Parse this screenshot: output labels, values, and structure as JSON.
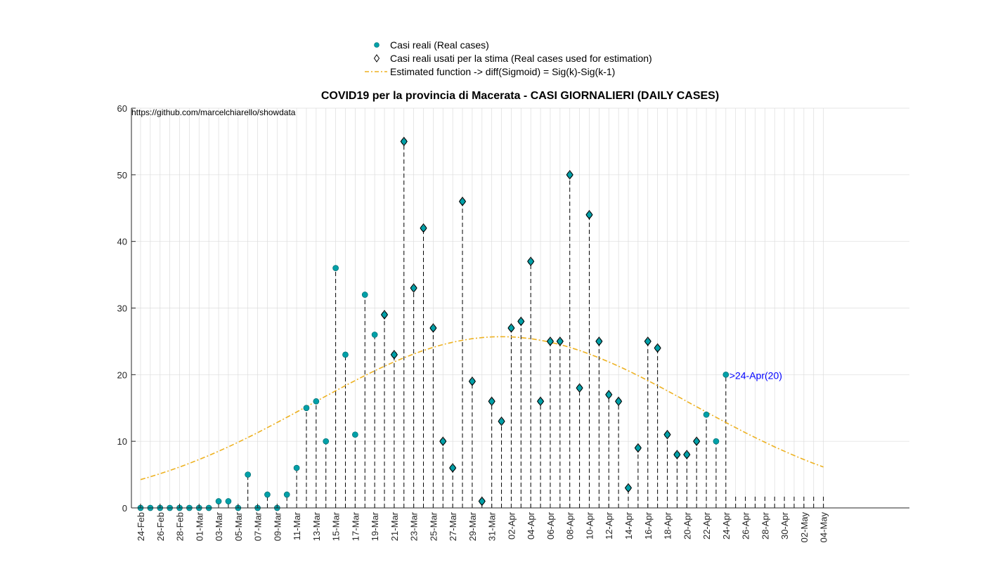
{
  "chart_data": {
    "type": "scatter",
    "title": "COVID19 per la provincia di Macerata - CASI GIORNALIERI (DAILY CASES)",
    "watermark": "https://github.com/marcelchiarello/showdata",
    "xlabel": "",
    "ylabel": "",
    "ylim": [
      0,
      60
    ],
    "yticks": [
      0,
      10,
      20,
      30,
      40,
      50,
      60
    ],
    "grid": true,
    "legend_position": "top-center",
    "x_start": "24-Feb",
    "x_end": "04-May",
    "xtick_labels": [
      "24-Feb",
      "26-Feb",
      "28-Feb",
      "01-Mar",
      "03-Mar",
      "05-Mar",
      "07-Mar",
      "09-Mar",
      "11-Mar",
      "13-Mar",
      "15-Mar",
      "17-Mar",
      "19-Mar",
      "21-Mar",
      "23-Mar",
      "25-Mar",
      "27-Mar",
      "29-Mar",
      "31-Mar",
      "02-Apr",
      "04-Apr",
      "06-Apr",
      "08-Apr",
      "10-Apr",
      "12-Apr",
      "14-Apr",
      "16-Apr",
      "18-Apr",
      "20-Apr",
      "22-Apr",
      "24-Apr",
      "26-Apr",
      "28-Apr",
      "30-Apr",
      "02-May",
      "04-May"
    ],
    "legend": [
      {
        "label": "Casi reali (Real cases)",
        "marker": "circle"
      },
      {
        "label": "Casi reali usati per la stima (Real cases used for estimation)",
        "marker": "diamond"
      },
      {
        "label": "Estimated function -> diff(Sigmoid) = Sig(k)-Sig(k-1)",
        "marker": "dashdot-line"
      }
    ],
    "series": [
      {
        "name": "Casi reali (Real cases)",
        "dates": [
          "24-Feb",
          "25-Feb",
          "26-Feb",
          "27-Feb",
          "28-Feb",
          "29-Feb",
          "01-Mar",
          "02-Mar",
          "03-Mar",
          "04-Mar",
          "05-Mar",
          "06-Mar",
          "07-Mar",
          "08-Mar",
          "09-Mar",
          "10-Mar",
          "11-Mar",
          "12-Mar",
          "13-Mar",
          "14-Mar",
          "15-Mar",
          "16-Mar",
          "17-Mar",
          "18-Mar",
          "19-Mar",
          "20-Mar",
          "21-Mar",
          "22-Mar",
          "23-Mar",
          "24-Mar",
          "25-Mar",
          "26-Mar",
          "27-Mar",
          "28-Mar",
          "29-Mar",
          "30-Mar",
          "31-Mar",
          "01-Apr",
          "02-Apr",
          "03-Apr",
          "04-Apr",
          "05-Apr",
          "06-Apr",
          "07-Apr",
          "08-Apr",
          "09-Apr",
          "10-Apr",
          "11-Apr",
          "12-Apr",
          "13-Apr",
          "14-Apr",
          "15-Apr",
          "16-Apr",
          "17-Apr",
          "18-Apr",
          "19-Apr",
          "20-Apr",
          "21-Apr",
          "22-Apr",
          "23-Apr",
          "24-Apr"
        ],
        "values": [
          0,
          0,
          0,
          0,
          0,
          0,
          0,
          0,
          1,
          1,
          0,
          5,
          0,
          2,
          0,
          2,
          6,
          15,
          16,
          10,
          36,
          23,
          11,
          32,
          26,
          29,
          23,
          55,
          33,
          42,
          27,
          10,
          6,
          46,
          19,
          1,
          16,
          13,
          27,
          28,
          37,
          16,
          25,
          25,
          50,
          18,
          44,
          25,
          17,
          16,
          3,
          9,
          25,
          24,
          11,
          8,
          8,
          10,
          14,
          10,
          20
        ]
      },
      {
        "name": "Casi reali usati per la stima (Real cases used for estimation)",
        "dates": [
          "20-Mar",
          "21-Mar",
          "22-Mar",
          "23-Mar",
          "24-Mar",
          "25-Mar",
          "26-Mar",
          "27-Mar",
          "28-Mar",
          "29-Mar",
          "30-Mar",
          "31-Mar",
          "01-Apr",
          "02-Apr",
          "03-Apr",
          "04-Apr",
          "05-Apr",
          "06-Apr",
          "07-Apr",
          "08-Apr",
          "09-Apr",
          "10-Apr",
          "11-Apr",
          "12-Apr",
          "13-Apr",
          "14-Apr",
          "15-Apr",
          "16-Apr",
          "17-Apr",
          "18-Apr",
          "19-Apr",
          "20-Apr",
          "21-Apr"
        ],
        "values": [
          29,
          23,
          55,
          33,
          42,
          27,
          10,
          6,
          46,
          19,
          1,
          16,
          13,
          27,
          28,
          37,
          16,
          25,
          25,
          50,
          18,
          44,
          25,
          17,
          16,
          3,
          9,
          25,
          24,
          11,
          8,
          8,
          10
        ]
      },
      {
        "name": "Estimated function -> diff(Sigmoid) = Sig(k)-Sig(k-1)",
        "dates": [
          "24-Feb",
          "04-Mar",
          "14-Mar",
          "24-Mar",
          "01-Apr",
          "10-Apr",
          "20-Apr",
          "30-Apr",
          "04-May"
        ],
        "values": [
          2.9,
          5.4,
          11.6,
          20.8,
          25.7,
          22.9,
          13.1,
          6.6,
          4.8
        ]
      }
    ],
    "annotation": {
      "text": ">24-Apr(20)",
      "date": "24-Apr",
      "value": 20,
      "color": "#0000ff"
    },
    "colors": {
      "marker_fill": "#00a0a8",
      "curve": "#edb120",
      "grid": "#dcdcdc",
      "axis": "#262626"
    }
  }
}
